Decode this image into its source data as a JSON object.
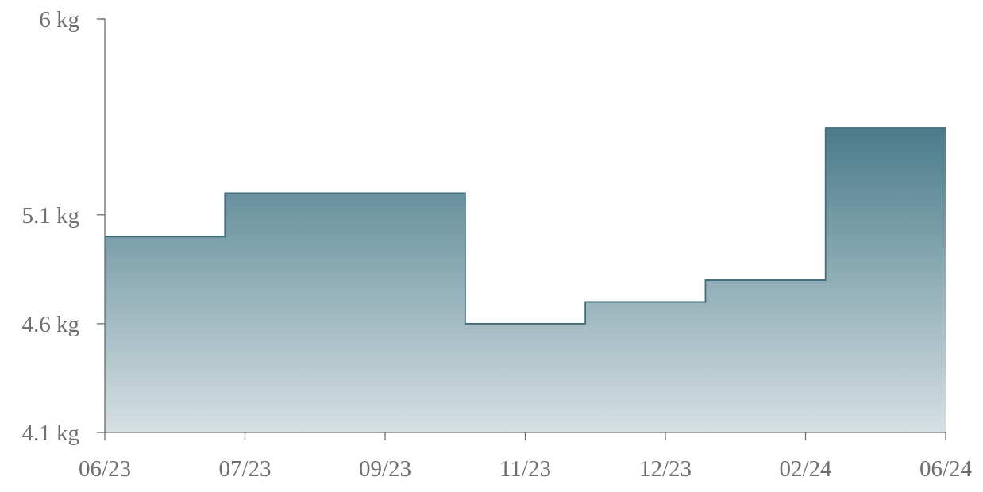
{
  "chart_data": {
    "type": "area",
    "subtype": "step",
    "title": "",
    "xlabel": "",
    "ylabel": "",
    "x_tick_labels": [
      "06/23",
      "07/23",
      "09/23",
      "11/23",
      "12/23",
      "02/24",
      "06/24"
    ],
    "y_tick_labels": [
      "4.1 kg",
      "4.6 kg",
      "5.1 kg",
      "6 kg"
    ],
    "y_tick_values": [
      4.1,
      4.6,
      5.1,
      6.0
    ],
    "ylim": [
      4.1,
      6.0
    ],
    "unit": "kg",
    "series": [
      {
        "values": [
          5.0,
          5.2,
          5.2,
          4.6,
          4.7,
          4.8,
          5.5
        ]
      }
    ],
    "grid": false,
    "legend": "none",
    "colors": {
      "fill_top": "#4a7b8a",
      "fill_bottom": "#d6e0e3",
      "line": "#3f6e7c",
      "axis": "#6b6b6b",
      "text": "#6f6f6f"
    }
  }
}
